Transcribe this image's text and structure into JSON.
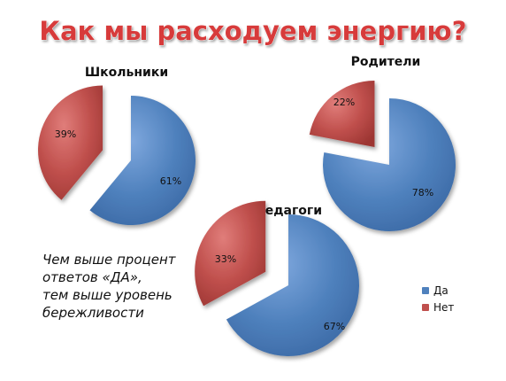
{
  "slide": {
    "title": "Как мы расходуем энергию?",
    "note_lines": [
      "Чем выше процент",
      "ответов «ДА»,",
      "тем выше уровень",
      "бережливости"
    ]
  },
  "colors": {
    "yes": "#4f81bd",
    "no": "#c0504d"
  },
  "legend": {
    "items": [
      {
        "label": "Да",
        "color": "#4f81bd"
      },
      {
        "label": "Нет",
        "color": "#c0504d"
      }
    ]
  },
  "chart_data": [
    {
      "type": "pie",
      "title": "Школьники",
      "categories": [
        "Да",
        "Нет"
      ],
      "values": [
        61,
        39
      ],
      "labels": [
        "61%",
        "39%"
      ],
      "colors": [
        "#4f81bd",
        "#c0504d"
      ],
      "exploded": "Нет"
    },
    {
      "type": "pie",
      "title": "Родители",
      "categories": [
        "Да",
        "Нет"
      ],
      "values": [
        78,
        22
      ],
      "labels": [
        "78%",
        "22%"
      ],
      "colors": [
        "#4f81bd",
        "#c0504d"
      ],
      "exploded": "Нет"
    },
    {
      "type": "pie",
      "title": "Педагоги",
      "categories": [
        "Да",
        "Нет"
      ],
      "values": [
        67,
        33
      ],
      "labels": [
        "67%",
        "33%"
      ],
      "colors": [
        "#4f81bd",
        "#c0504d"
      ],
      "exploded": "Нет"
    }
  ]
}
